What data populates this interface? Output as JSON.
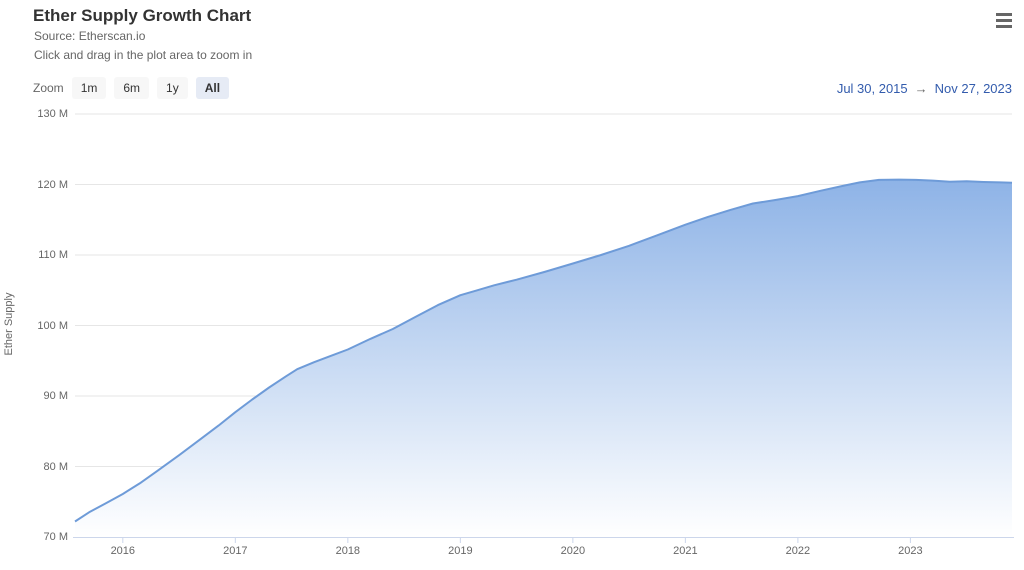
{
  "header": {
    "title": "Ether Supply Growth Chart",
    "subtitle_line1": "Source: Etherscan.io",
    "subtitle_line2": "Click and drag in the plot area to zoom in"
  },
  "toolbar": {
    "zoom_label": "Zoom",
    "buttons": [
      {
        "label": "1m",
        "selected": false
      },
      {
        "label": "6m",
        "selected": false
      },
      {
        "label": "1y",
        "selected": false
      },
      {
        "label": "All",
        "selected": true
      }
    ],
    "range_from": "Jul 30, 2015",
    "range_arrow": "→",
    "range_to": "Nov 27, 2023"
  },
  "chart_data": {
    "type": "area",
    "title": "Ether Supply Growth Chart",
    "xlabel": "",
    "ylabel": "Ether Supply",
    "legend": "none",
    "grid": "horizontal",
    "xlim": [
      2015.575,
      2023.903
    ],
    "ylim": [
      70,
      130
    ],
    "x_ticks": [
      2016,
      2017,
      2018,
      2019,
      2020,
      2021,
      2022,
      2023
    ],
    "y_ticks": [
      {
        "value": 70,
        "label": "70 M"
      },
      {
        "value": 80,
        "label": "80 M"
      },
      {
        "value": 90,
        "label": "90 M"
      },
      {
        "value": 100,
        "label": "100 M"
      },
      {
        "value": 110,
        "label": "110 M"
      },
      {
        "value": 120,
        "label": "120 M"
      },
      {
        "value": 130,
        "label": "130 M"
      }
    ],
    "series": [
      {
        "name": "Ether Supply",
        "unit": "million ETH",
        "x": [
          2015.575,
          2015.7,
          2015.85,
          2016.0,
          2016.15,
          2016.3,
          2016.5,
          2016.7,
          2016.85,
          2017.0,
          2017.15,
          2017.3,
          2017.45,
          2017.55,
          2017.7,
          2017.85,
          2018.0,
          2018.2,
          2018.4,
          2018.6,
          2018.8,
          2019.0,
          2019.15,
          2019.3,
          2019.5,
          2019.75,
          2020.0,
          2020.25,
          2020.5,
          2020.75,
          2021.0,
          2021.2,
          2021.4,
          2021.6,
          2021.8,
          2022.0,
          2022.2,
          2022.4,
          2022.55,
          2022.72,
          2022.9,
          2023.05,
          2023.2,
          2023.35,
          2023.5,
          2023.65,
          2023.8,
          2023.903
        ],
        "values": [
          72.2,
          73.5,
          74.8,
          76.1,
          77.6,
          79.3,
          81.6,
          84.0,
          85.8,
          87.7,
          89.5,
          91.2,
          92.8,
          93.8,
          94.8,
          95.7,
          96.6,
          98.1,
          99.5,
          101.2,
          102.9,
          104.3,
          105.0,
          105.7,
          106.5,
          107.6,
          108.8,
          110.0,
          111.3,
          112.8,
          114.3,
          115.4,
          116.4,
          117.3,
          117.8,
          118.35,
          119.1,
          119.8,
          120.3,
          120.65,
          120.7,
          120.65,
          120.55,
          120.4,
          120.45,
          120.35,
          120.3,
          120.25
        ]
      }
    ],
    "colors": {
      "line": "#6e9bd8",
      "area_gradient_top": "#79a5e2",
      "area_gradient_bottom": "#ffffff",
      "gridline": "#e6e6e6",
      "axis_line": "#ccd6eb",
      "tick_text": "#666666"
    }
  }
}
